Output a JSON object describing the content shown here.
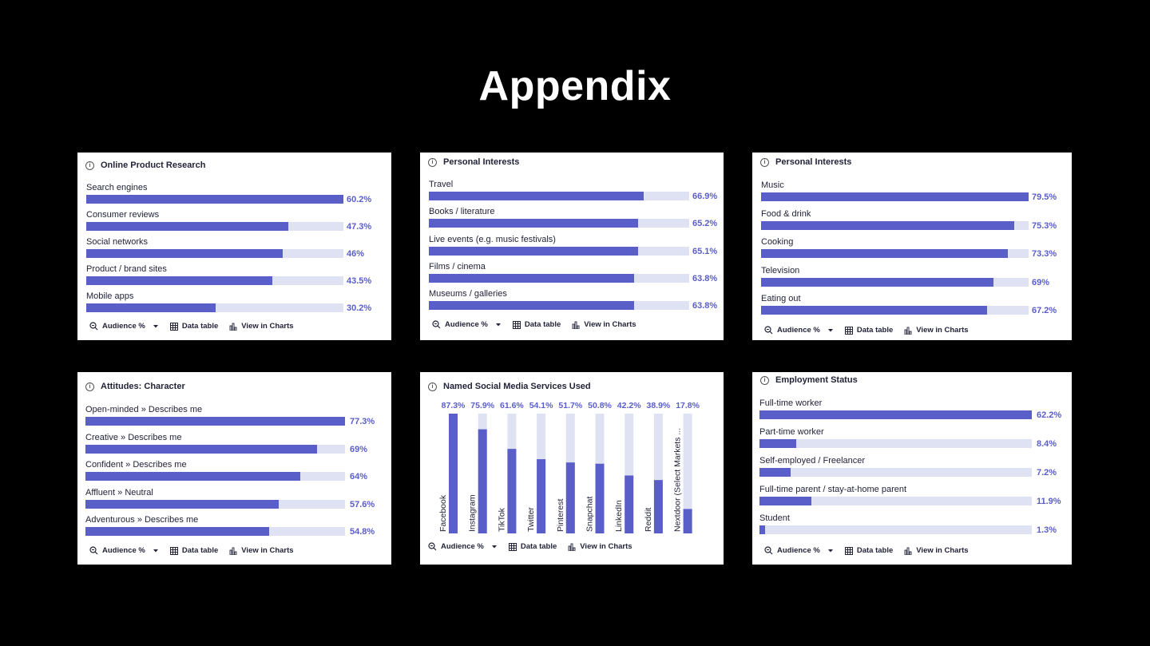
{
  "page_title": "Appendix",
  "toolbar": {
    "audience_label": "Audience %",
    "data_table_label": "Data table",
    "view_charts_label": "View in Charts"
  },
  "colors": {
    "fill": "#5a5ec8",
    "track": "#dfe2f3",
    "value_text": "#5a5ec8"
  },
  "chart_data": [
    {
      "type": "bar",
      "orientation": "horizontal",
      "title": "Online Product Research",
      "categories": [
        "Search engines",
        "Consumer reviews",
        "Social networks",
        "Product / brand sites",
        "Mobile apps"
      ],
      "values": [
        60.2,
        47.3,
        46,
        43.5,
        30.2
      ],
      "value_labels": [
        "60.2%",
        "47.3%",
        "46%",
        "43.5%",
        "30.2%"
      ],
      "max": 60.2,
      "ylabel": "Audience %"
    },
    {
      "type": "bar",
      "orientation": "horizontal",
      "title": "Personal Interests",
      "categories": [
        "Travel",
        "Books / literature",
        "Live events (e.g. music festivals)",
        "Films / cinema",
        "Museums / galleries"
      ],
      "values": [
        66.9,
        65.2,
        65.1,
        63.8,
        63.8
      ],
      "value_labels": [
        "66.9%",
        "65.2%",
        "65.1%",
        "63.8%",
        "63.8%"
      ],
      "max": 81,
      "ylabel": "Audience %"
    },
    {
      "type": "bar",
      "orientation": "horizontal",
      "title": "Personal Interests",
      "categories": [
        "Music",
        "Food & drink",
        "Cooking",
        "Television",
        "Eating out"
      ],
      "values": [
        79.5,
        75.3,
        73.3,
        69,
        67.2
      ],
      "value_labels": [
        "79.5%",
        "75.3%",
        "73.3%",
        "69%",
        "67.2%"
      ],
      "max": 79.5,
      "ylabel": "Audience %"
    },
    {
      "type": "bar",
      "orientation": "horizontal",
      "title": "Attitudes: Character",
      "categories": [
        "Open-minded » Describes me",
        "Creative » Describes me",
        "Confident » Describes me",
        "Affluent » Neutral",
        "Adventurous » Describes me"
      ],
      "values": [
        77.3,
        69,
        64,
        57.6,
        54.8
      ],
      "value_labels": [
        "77.3%",
        "69%",
        "64%",
        "57.6%",
        "54.8%"
      ],
      "max": 77.3,
      "ylabel": "Audience %"
    },
    {
      "type": "bar",
      "orientation": "vertical",
      "title": "Named Social Media Services Used",
      "categories": [
        "Facebook",
        "Instagram",
        "TikTok",
        "Twitter",
        "Pinterest",
        "Snapchat",
        "LinkedIn",
        "Reddit",
        "Nextdoor (Select Markets ..."
      ],
      "values": [
        87.3,
        75.9,
        61.6,
        54.1,
        51.7,
        50.8,
        42.2,
        38.9,
        17.8
      ],
      "value_labels": [
        "87.3%",
        "75.9%",
        "61.6%",
        "54.1%",
        "51.7%",
        "50.8%",
        "42.2%",
        "38.9%",
        "17.8%"
      ],
      "max": 87.3,
      "ylabel": "Audience %"
    },
    {
      "type": "bar",
      "orientation": "horizontal",
      "title": "Employment Status",
      "categories": [
        "Full-time worker",
        "Part-time worker",
        "Self-employed / Freelancer",
        "Full-time parent / stay-at-home parent",
        "Student"
      ],
      "values": [
        62.2,
        8.4,
        7.2,
        11.9,
        1.3
      ],
      "value_labels": [
        "62.2%",
        "8.4%",
        "7.2%",
        "11.9%",
        "1.3%"
      ],
      "max": 62.2,
      "ylabel": "Audience %"
    }
  ]
}
